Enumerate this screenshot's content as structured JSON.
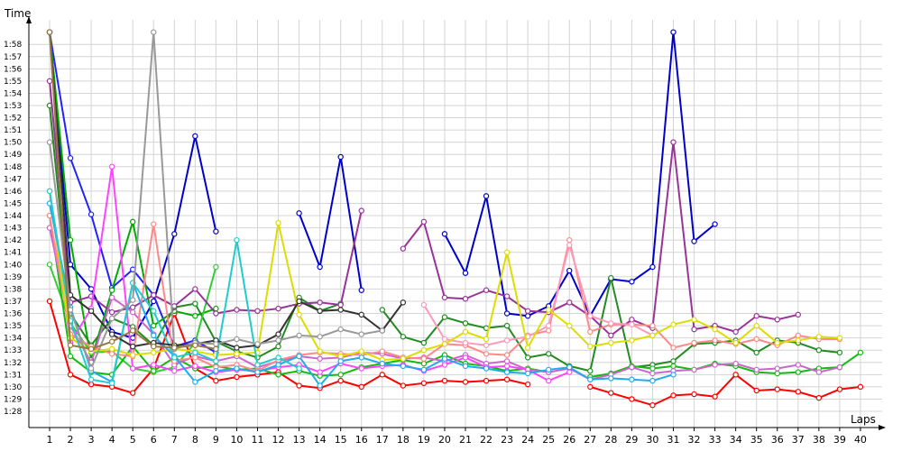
{
  "chart_data": {
    "type": "line",
    "title": "",
    "ylabel": "Time",
    "xlabel": "Laps",
    "x": [
      1,
      2,
      3,
      4,
      5,
      6,
      7,
      8,
      9,
      10,
      11,
      12,
      13,
      14,
      15,
      16,
      17,
      18,
      19,
      20,
      21,
      22,
      23,
      24,
      25,
      26,
      27,
      28,
      29,
      30,
      31,
      32,
      33,
      34,
      35,
      36,
      37,
      38,
      39,
      40
    ],
    "y_ticks": [
      "1:28",
      "1:29",
      "1:30",
      "1:31",
      "1:32",
      "1:33",
      "1:34",
      "1:35",
      "1:36",
      "1:37",
      "1:38",
      "1:39",
      "1:40",
      "1:41",
      "1:42",
      "1:43",
      "1:44",
      "1:45",
      "1:46",
      "1:47",
      "1:48",
      "1:49",
      "1:50",
      "1:51",
      "1:52",
      "1:53",
      "1:54",
      "1:55",
      "1:56",
      "1:57",
      "1:58"
    ],
    "y_tick_values": [
      88,
      89,
      90,
      91,
      92,
      93,
      94,
      95,
      96,
      97,
      98,
      99,
      100,
      101,
      102,
      103,
      104,
      105,
      106,
      107,
      108,
      109,
      110,
      111,
      112,
      113,
      114,
      115,
      116,
      117,
      118
    ],
    "y_unit": "seconds",
    "ylim": [
      86.9,
      119.4
    ],
    "xlim": [
      0.3,
      40.5
    ],
    "grid": true,
    "series": [
      {
        "color": "#ff0000",
        "values": [
          97,
          91,
          90.2,
          90,
          89.5,
          91.5,
          96,
          91.5,
          90.5,
          90.8,
          91,
          91.2,
          90.1,
          89.9,
          90.5,
          90,
          91,
          90.1,
          90.3,
          90.5,
          90.4,
          90.5,
          90.6,
          90.2,
          null,
          null,
          90,
          89.5,
          89,
          88.5,
          89.3,
          89.4,
          89.2,
          91,
          89.7,
          89.8,
          89.6,
          89.1,
          89.8,
          90
        ]
      },
      {
        "color": "#0000cc",
        "values": [
          119,
          100,
          98,
          94.5,
          94,
          97,
          102.5,
          110.5,
          102.7,
          null,
          null,
          null,
          104.2,
          99.8,
          108.8,
          97.9,
          null,
          null,
          null,
          102.5,
          99.3,
          105.6,
          96,
          95.8,
          96.6,
          99.5,
          95.8,
          98.8,
          98.6,
          99.8,
          119,
          101.9,
          103.3,
          null,
          null,
          null,
          null,
          null,
          null,
          null
        ]
      },
      {
        "color": "#2222ff",
        "values": [
          119,
          108.7,
          104.1,
          98.1,
          99.6,
          97.5,
          93.3,
          93.8,
          92.8,
          null,
          null,
          null,
          null,
          null,
          null,
          null,
          null,
          null,
          null,
          null,
          null,
          null,
          null,
          null,
          null,
          null,
          null,
          null,
          null,
          null,
          null,
          null,
          null,
          null,
          null,
          null,
          null,
          null,
          null,
          null
        ]
      },
      {
        "color": "#00aa00",
        "values": [
          119,
          102,
          92.2,
          97.9,
          103.5,
          95,
          96.2,
          95.8,
          96.4,
          null,
          null,
          null,
          null,
          null,
          null,
          null,
          null,
          null,
          null,
          null,
          null,
          null,
          null,
          null,
          null,
          null,
          null,
          null,
          null,
          null,
          null,
          null,
          null,
          null,
          null,
          null,
          null,
          null,
          null,
          null
        ]
      },
      {
        "color": "#228b22",
        "values": [
          113,
          96,
          93.4,
          95.6,
          94.9,
          93.4,
          96.5,
          96.8,
          93.7,
          92.9,
          92.4,
          93.3,
          97.3,
          96.2,
          96.8,
          null,
          96.3,
          94.1,
          93.6,
          95.7,
          95.2,
          94.8,
          95,
          92.4,
          92.7,
          91.7,
          91.3,
          98.9,
          91.6,
          91.8,
          92.1,
          93.5,
          93.6,
          93.8,
          92.8,
          93.8,
          93.6,
          93,
          92.8,
          null
        ]
      },
      {
        "color": "#33cc33",
        "values": [
          100,
          95.2,
          92.8,
          92.9,
          91.5,
          91.2,
          91.6,
          93.6,
          99.8,
          null,
          null,
          null,
          null,
          null,
          null,
          null,
          null,
          null,
          null,
          null,
          null,
          null,
          null,
          null,
          null,
          null,
          null,
          null,
          null,
          null,
          null,
          null,
          null,
          null,
          null,
          null,
          null,
          null,
          null,
          null
        ]
      },
      {
        "color": "#11bb11",
        "values": [
          104,
          92.5,
          91.2,
          91,
          93.3,
          91.3,
          92.4,
          91.5,
          91.7,
          91.4,
          91.5,
          91,
          91.3,
          90.9,
          91,
          91.6,
          91.9,
          92.2,
          91.9,
          92.6,
          91.9,
          91.7,
          91.3,
          91.5,
          91.2,
          null,
          90.8,
          91.1,
          91.7,
          91.5,
          91.7,
          91.4,
          91.9,
          91.7,
          91.2,
          91.1,
          91.2,
          91.5,
          91.6,
          92.8
        ]
      },
      {
        "color": "#993399",
        "values": [
          115,
          96.9,
          97.4,
          96.1,
          96.5,
          97.5,
          96.6,
          98,
          96,
          96.3,
          96.2,
          96.4,
          96.8,
          96.9,
          96.7,
          104.4,
          null,
          101.3,
          103.5,
          97.3,
          97.2,
          97.9,
          97.4,
          96.2,
          96.1,
          96.9,
          95.8,
          94.2,
          95.5,
          94.8,
          110,
          94.7,
          95,
          94.5,
          95.8,
          95.5,
          95.9,
          null,
          null,
          null
        ]
      },
      {
        "color": "#cc66cc",
        "values": [
          103,
          95,
          92,
          97.3,
          96.1,
          94.3,
          91.8,
          92.5,
          92.1,
          92.5,
          91.6,
          92.1,
          92.5,
          92.3,
          92.4,
          92.8,
          92.7,
          92.3,
          92.4,
          92.1,
          92.6,
          91.9,
          92.1,
          91.4,
          91.2,
          91.5,
          90.6,
          91,
          91.6,
          91.1,
          91.3,
          91.4,
          91.8,
          91.9,
          91.4,
          91.5,
          91.8,
          91.2,
          91.6,
          null
        ]
      },
      {
        "color": "#ff44ff",
        "values": [
          106,
          93.6,
          96.4,
          108,
          91.5,
          91.8,
          91.3,
          91.7,
          91.2,
          91.4,
          91.3,
          91.6,
          91.8,
          91.2,
          91.9,
          91.5,
          91.7,
          91.8,
          91.3,
          91.8,
          92.4,
          91.6,
          91.7,
          91.4,
          90.5,
          91.2,
          null,
          null,
          null,
          null,
          null,
          null,
          null,
          null,
          null,
          null,
          null,
          null,
          null,
          null
        ]
      },
      {
        "color": "#ff8888",
        "values": [
          104,
          94.3,
          93.3,
          92.7,
          92.5,
          103.3,
          92.1,
          92.4,
          91.6,
          91.8,
          91.3,
          92.2,
          92.6,
          92.8,
          92.7,
          92.6,
          92.9,
          92.4,
          92.3,
          93.5,
          93.4,
          92.7,
          92.6,
          94.2,
          94.6,
          102,
          94.5,
          95.1,
          95.1,
          95,
          93.2,
          93.6,
          93.8,
          93.5,
          93.9,
          93.4,
          94.2,
          93.9,
          93.9,
          null
        ]
      },
      {
        "color": "#ff99bb",
        "values": [
          null,
          null,
          null,
          null,
          null,
          null,
          null,
          null,
          null,
          null,
          null,
          null,
          null,
          null,
          null,
          null,
          null,
          null,
          96.7,
          93.9,
          93.6,
          93.4,
          93.8,
          94.1,
          95,
          101.6,
          95.8,
          95.2,
          95.1,
          94.2,
          null,
          null,
          null,
          null,
          null,
          null,
          null,
          null,
          null,
          null
        ]
      },
      {
        "color": "#dddd00",
        "values": [
          106,
          94,
          92.9,
          93.1,
          92.6,
          92.8,
          93.1,
          92.9,
          92.6,
          92.7,
          92.8,
          103.4,
          95.9,
          92.9,
          92.5,
          92.9,
          92.2,
          92.3,
          93,
          93.5,
          94.5,
          93.9,
          101,
          93.2,
          96.3,
          95,
          93.3,
          93.6,
          93.8,
          94.2,
          95.1,
          95.5,
          94.7,
          93.6,
          95,
          93.6,
          93.8,
          94.1,
          94,
          null
        ]
      },
      {
        "color": "#22aaee",
        "values": [
          105,
          96.5,
          91.3,
          90.4,
          98.5,
          94.2,
          92.5,
          90.4,
          91.3,
          91.5,
          91.2,
          91.8,
          92.5,
          90.1,
          92.1,
          92.4,
          91.9,
          91.7,
          91.4,
          92.3,
          91.7,
          91.5,
          91.2,
          91.1,
          91.4,
          91.6,
          90.6,
          90.7,
          90.6,
          90.5,
          91,
          null,
          null,
          null,
          null,
          null,
          null,
          null,
          null,
          null
        ]
      },
      {
        "color": "#22cccc",
        "values": [
          106,
          95.4,
          90.6,
          90.3,
          98.5,
          96.2,
          92.4,
          92.8,
          92.1,
          102,
          91.8,
          92.4,
          91.5,
          null,
          null,
          null,
          null,
          null,
          null,
          null,
          null,
          null,
          null,
          null,
          null,
          null,
          null,
          null,
          null,
          null,
          null,
          null,
          null,
          null,
          null,
          null,
          null,
          null,
          null,
          null
        ]
      },
      {
        "color": "#333333",
        "values": [
          119,
          97.5,
          96.2,
          94.3,
          93.3,
          93.6,
          93.4,
          93.5,
          93.8,
          93.2,
          93.4,
          94.3,
          97,
          96.2,
          96.3,
          95.9,
          94.6,
          96.9,
          null,
          null,
          null,
          null,
          null,
          null,
          null,
          null,
          null,
          null,
          null,
          null,
          null,
          null,
          null,
          null,
          null,
          null,
          null,
          null,
          null,
          null
        ]
      },
      {
        "color": "#999999",
        "values": [
          110,
          96.3,
          91.5,
          95.6,
          97.1,
          119,
          93.1,
          93.6,
          93.5,
          93.9,
          93.5,
          93.8,
          94.2,
          94.1,
          94.7,
          94.3,
          94.6,
          null,
          null,
          null,
          null,
          null,
          null,
          null,
          null,
          null,
          null,
          null,
          null,
          null,
          null,
          null,
          null,
          null,
          null,
          null,
          null,
          null,
          null,
          null
        ]
      },
      {
        "color": "#997744",
        "values": [
          119,
          93.4,
          93.1,
          93.7,
          94.6,
          93.3,
          93.2,
          93.4,
          93.1,
          null,
          null,
          null,
          null,
          null,
          null,
          null,
          null,
          null,
          null,
          null,
          null,
          null,
          null,
          null,
          null,
          null,
          null,
          null,
          null,
          null,
          null,
          null,
          null,
          null,
          null,
          null,
          null,
          null,
          null,
          null
        ]
      }
    ]
  }
}
